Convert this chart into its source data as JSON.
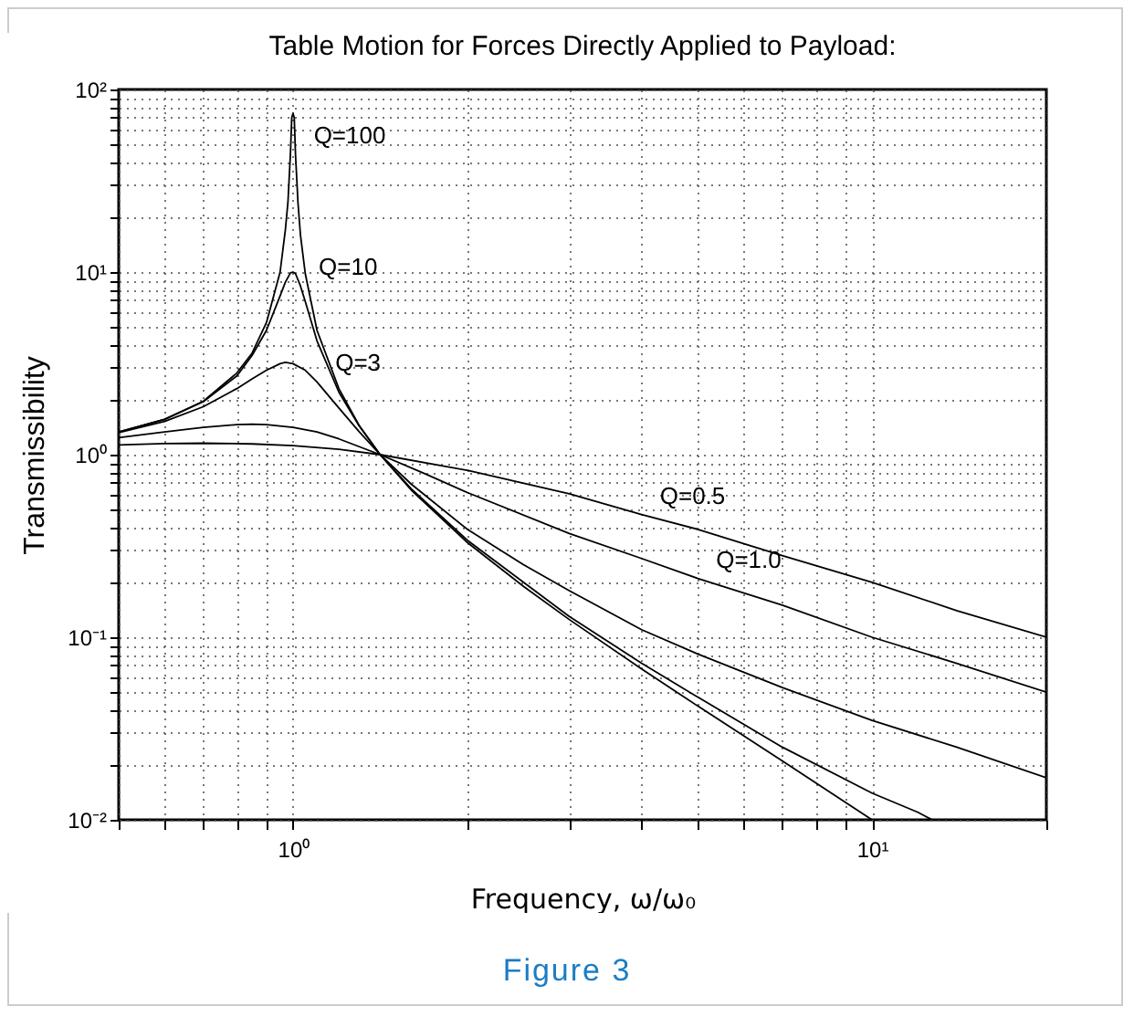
{
  "chart_data": {
    "type": "line",
    "title": "Table Motion for Forces Directly Applied to Payload:",
    "xlabel": "Frequency, ω/ω₀",
    "ylabel": "Transmissibility",
    "log": "xy",
    "grid": true,
    "line_style": "solid",
    "xlim": [
      0.5,
      20
    ],
    "ylim": [
      0.01,
      100
    ],
    "xticks": [
      {
        "value": 0.5,
        "label": null
      },
      {
        "value": 0.6,
        "label": null
      },
      {
        "value": 0.7,
        "label": null
      },
      {
        "value": 0.8,
        "label": null
      },
      {
        "value": 0.9,
        "label": null
      },
      {
        "value": 1,
        "label": "10⁰"
      },
      {
        "value": 2,
        "label": null
      },
      {
        "value": 3,
        "label": null
      },
      {
        "value": 4,
        "label": null
      },
      {
        "value": 5,
        "label": null
      },
      {
        "value": 6,
        "label": null
      },
      {
        "value": 7,
        "label": null
      },
      {
        "value": 8,
        "label": null
      },
      {
        "value": 9,
        "label": null
      },
      {
        "value": 10,
        "label": "10¹"
      },
      {
        "value": 20,
        "label": null
      }
    ],
    "yticks": [
      {
        "value": 0.01,
        "label": "10⁻²"
      },
      {
        "value": 0.02,
        "label": null
      },
      {
        "value": 0.03,
        "label": null
      },
      {
        "value": 0.04,
        "label": null
      },
      {
        "value": 0.05,
        "label": null
      },
      {
        "value": 0.06,
        "label": null
      },
      {
        "value": 0.07,
        "label": null
      },
      {
        "value": 0.08,
        "label": null
      },
      {
        "value": 0.09,
        "label": null
      },
      {
        "value": 0.1,
        "label": "10⁻¹"
      },
      {
        "value": 0.2,
        "label": null
      },
      {
        "value": 0.3,
        "label": null
      },
      {
        "value": 0.4,
        "label": null
      },
      {
        "value": 0.5,
        "label": null
      },
      {
        "value": 0.6,
        "label": null
      },
      {
        "value": 0.7,
        "label": null
      },
      {
        "value": 0.8,
        "label": null
      },
      {
        "value": 0.9,
        "label": null
      },
      {
        "value": 1,
        "label": "10⁰"
      },
      {
        "value": 2,
        "label": null
      },
      {
        "value": 3,
        "label": null
      },
      {
        "value": 4,
        "label": null
      },
      {
        "value": 5,
        "label": null
      },
      {
        "value": 6,
        "label": null
      },
      {
        "value": 7,
        "label": null
      },
      {
        "value": 8,
        "label": null
      },
      {
        "value": 9,
        "label": null
      },
      {
        "value": 10,
        "label": "10¹"
      },
      {
        "value": 20,
        "label": null
      },
      {
        "value": 30,
        "label": null
      },
      {
        "value": 40,
        "label": null
      },
      {
        "value": 50,
        "label": null
      },
      {
        "value": 60,
        "label": null
      },
      {
        "value": 70,
        "label": null
      },
      {
        "value": 80,
        "label": null
      },
      {
        "value": 90,
        "label": null
      },
      {
        "value": 100,
        "label": "10²"
      }
    ],
    "series": [
      {
        "color": "#000000",
        "x": [
          0.5,
          0.6,
          0.7,
          0.85,
          1,
          1.2,
          1.414,
          2,
          3,
          4,
          5,
          7,
          10,
          14,
          20
        ],
        "values": [
          1.13,
          1.15,
          1.155,
          1.145,
          1.12,
          1.07,
          1,
          0.82,
          0.61,
          0.47,
          0.39,
          0.28,
          0.2,
          0.14,
          0.1
        ]
      },
      {
        "color": "#000000",
        "x": [
          0.5,
          0.6,
          0.7,
          0.8,
          0.85,
          0.9,
          1,
          1.1,
          1.2,
          1.414,
          1.7,
          2,
          3,
          4,
          5,
          7,
          10,
          14,
          20
        ],
        "values": [
          1.24,
          1.33,
          1.41,
          1.46,
          1.47,
          1.46,
          1.41,
          1.33,
          1.22,
          1,
          0.78,
          0.62,
          0.37,
          0.27,
          0.21,
          0.15,
          0.1,
          0.072,
          0.05
        ]
      },
      {
        "color": "#000000",
        "x": [
          0.5,
          0.6,
          0.7,
          0.8,
          0.85,
          0.9,
          0.95,
          0.97,
          1,
          1.05,
          1.1,
          1.2,
          1.3,
          1.414,
          1.6,
          2,
          2.5,
          3,
          4,
          5,
          7,
          10,
          14,
          20
        ],
        "values": [
          1.32,
          1.52,
          1.83,
          2.3,
          2.6,
          2.9,
          3.15,
          3.2,
          3.15,
          2.9,
          2.5,
          1.8,
          1.34,
          1,
          0.69,
          0.39,
          0.25,
          0.18,
          0.11,
          0.081,
          0.053,
          0.035,
          0.025,
          0.017
        ]
      },
      {
        "color": "#000000",
        "x": [
          0.5,
          0.6,
          0.7,
          0.8,
          0.85,
          0.9,
          0.95,
          0.97,
          0.99,
          1,
          1.01,
          1.03,
          1.05,
          1.1,
          1.2,
          1.3,
          1.414,
          1.6,
          2,
          2.5,
          3,
          4,
          5,
          7,
          10,
          12,
          12.7
        ],
        "values": [
          1.33,
          1.56,
          1.95,
          2.7,
          3.5,
          4.8,
          7.4,
          8.8,
          9.9,
          10,
          9.8,
          8.4,
          6.9,
          4.2,
          2.2,
          1.44,
          1,
          0.65,
          0.34,
          0.2,
          0.13,
          0.072,
          0.047,
          0.025,
          0.014,
          0.011,
          0.01
        ]
      },
      {
        "color": "#000000",
        "x": [
          0.5,
          0.6,
          0.7,
          0.8,
          0.85,
          0.9,
          0.95,
          0.97,
          0.98,
          0.99,
          0.995,
          1,
          1.005,
          1.01,
          1.02,
          1.03,
          1.05,
          1.1,
          1.2,
          1.3,
          1.414,
          1.6,
          2,
          2.5,
          3,
          4,
          5,
          7,
          10
        ],
        "values": [
          1.33,
          1.56,
          1.96,
          2.8,
          3.6,
          5.3,
          10,
          17,
          24,
          45,
          70,
          74,
          70,
          44,
          24,
          16,
          9.8,
          4.8,
          2.3,
          1.45,
          1,
          0.64,
          0.33,
          0.19,
          0.125,
          0.067,
          0.042,
          0.021,
          0.01
        ]
      }
    ],
    "annotations": [
      {
        "text": "Q=100",
        "x": 1.01,
        "y": 44
      },
      {
        "text": "Q=10",
        "x": 1.03,
        "y": 8.4
      },
      {
        "text": "Q=3",
        "x": 1.1,
        "y": 2.5
      },
      {
        "text": "Q=0.5",
        "x": 4,
        "y": 0.47
      },
      {
        "text": "Q=1.0",
        "x": 5,
        "y": 0.21
      },
      "Figure 3"
    ]
  }
}
